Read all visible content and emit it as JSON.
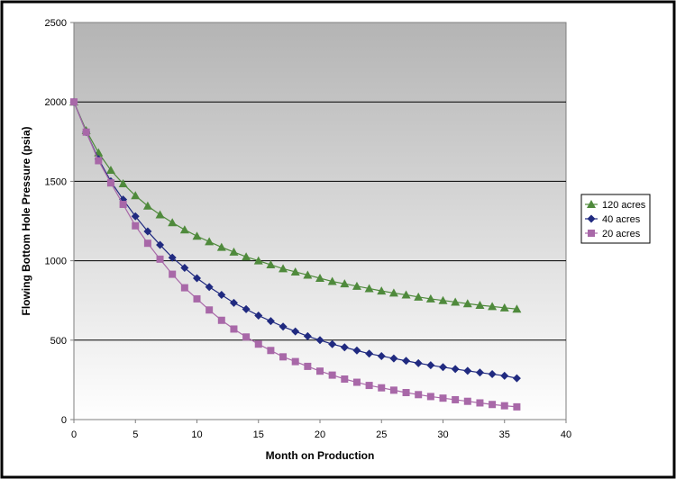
{
  "chart_data": {
    "type": "line",
    "title": "",
    "xlabel": "Month on Production",
    "ylabel": "Flowing Bottom Hole Pressure (psia)",
    "xlim": [
      0,
      40
    ],
    "ylim": [
      0,
      2500
    ],
    "xticks": [
      0,
      5,
      10,
      15,
      20,
      25,
      30,
      35,
      40
    ],
    "yticks": [
      0,
      500,
      1000,
      1500,
      2000,
      2500
    ],
    "grid": "horizontal",
    "legend_position": "right",
    "x": [
      0,
      1,
      2,
      3,
      4,
      5,
      6,
      7,
      8,
      9,
      10,
      11,
      12,
      13,
      14,
      15,
      16,
      17,
      18,
      19,
      20,
      21,
      22,
      23,
      24,
      25,
      26,
      27,
      28,
      29,
      30,
      31,
      32,
      33,
      34,
      35,
      36
    ],
    "series": [
      {
        "name": "120 acres",
        "color": "#4F8A3C",
        "marker": "triangle",
        "values": [
          2000,
          1820,
          1680,
          1570,
          1485,
          1410,
          1345,
          1290,
          1240,
          1195,
          1155,
          1120,
          1085,
          1055,
          1025,
          1000,
          975,
          950,
          930,
          910,
          890,
          870,
          855,
          840,
          825,
          810,
          797,
          785,
          772,
          760,
          750,
          740,
          730,
          720,
          712,
          704,
          696
        ]
      },
      {
        "name": "40 acres",
        "color": "#202A80",
        "marker": "diamond",
        "values": [
          2000,
          1810,
          1640,
          1500,
          1385,
          1280,
          1185,
          1100,
          1020,
          955,
          890,
          835,
          785,
          735,
          695,
          655,
          620,
          585,
          555,
          525,
          500,
          475,
          455,
          435,
          415,
          400,
          385,
          370,
          355,
          342,
          330,
          318,
          307,
          296,
          286,
          276,
          260
        ]
      },
      {
        "name": "20 acres",
        "color": "#A868A8",
        "marker": "square",
        "values": [
          2000,
          1810,
          1630,
          1490,
          1355,
          1220,
          1110,
          1010,
          915,
          830,
          760,
          690,
          625,
          570,
          520,
          475,
          435,
          395,
          365,
          335,
          305,
          280,
          255,
          235,
          215,
          200,
          185,
          170,
          157,
          145,
          135,
          125,
          115,
          105,
          95,
          87,
          80
        ]
      }
    ]
  }
}
